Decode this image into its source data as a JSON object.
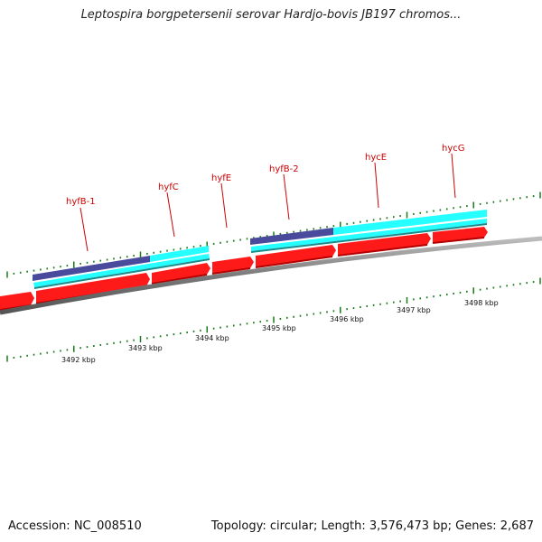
{
  "title": "Leptospira borgpetersenii serovar Hardjo-bovis JB197 chromos...",
  "footer": {
    "accession": "Accession: NC_008510",
    "info": "Topology: circular; Length: 3,576,473 bp; Genes: 2,687"
  },
  "colors": {
    "cds": "#ff1a1a",
    "cds_shade": "#b30000",
    "feature_cyan": "#26ffff",
    "feature_navy": "#4a4a9c",
    "backbone": "#8a8a8a",
    "ticks": "#1a7a1a",
    "label": "#cc0000"
  },
  "gene_labels": [
    "hyfB-1",
    "hyfC",
    "hyfE",
    "hyfB-2",
    "hycE",
    "hycG"
  ],
  "kbp_labels": [
    "3492 kbp",
    "3493 kbp",
    "3494 kbp",
    "3495 kbp",
    "3496 kbp",
    "3497 kbp",
    "3498 kbp"
  ]
}
